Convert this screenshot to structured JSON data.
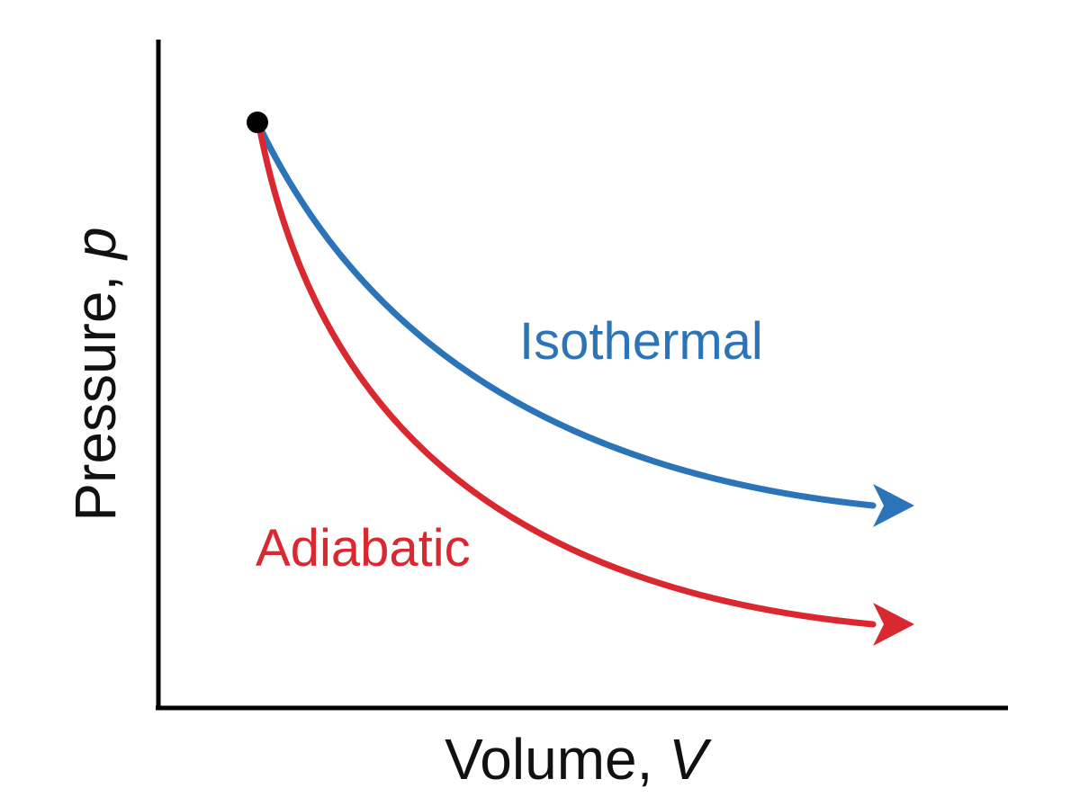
{
  "axes": {
    "x_label": "Volume, ",
    "x_symbol": "V",
    "y_label": "Pressure, ",
    "y_symbol": "p"
  },
  "curves": {
    "isothermal": {
      "label": "Isothermal",
      "color": "#2b74b8"
    },
    "adiabatic": {
      "label": "Adiabatic",
      "color": "#d9282f"
    }
  },
  "start_point": {
    "color": "#000000"
  },
  "axis_color": "#000000"
}
